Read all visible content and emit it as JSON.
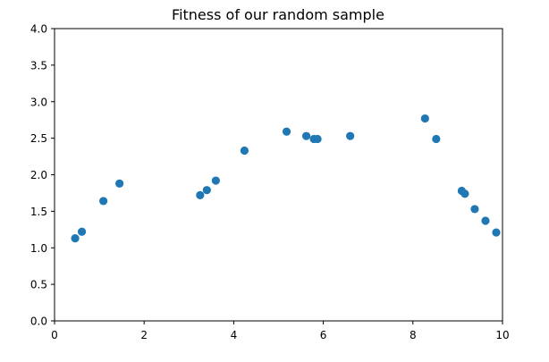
{
  "chart_data": {
    "type": "scatter",
    "title": "Fitness of our random sample",
    "xlabel": "",
    "ylabel": "",
    "xlim": [
      0,
      10
    ],
    "ylim": [
      0,
      4.0
    ],
    "x_ticks": [
      0,
      2,
      4,
      6,
      8,
      10
    ],
    "x_tick_labels": [
      "0",
      "2",
      "4",
      "6",
      "8",
      "10"
    ],
    "y_ticks": [
      0,
      0.5,
      1.0,
      1.5,
      2.0,
      2.5,
      3.0,
      3.5,
      4.0
    ],
    "y_tick_labels": [
      "0.0",
      "0.5",
      "1.0",
      "1.5",
      "2.0",
      "2.5",
      "3.0",
      "3.5",
      "4.0"
    ],
    "grid": false,
    "series": [
      {
        "color": "#1f77b4",
        "points": [
          {
            "x": 0.46,
            "y": 1.13
          },
          {
            "x": 0.61,
            "y": 1.22
          },
          {
            "x": 1.09,
            "y": 1.64
          },
          {
            "x": 1.45,
            "y": 1.88
          },
          {
            "x": 3.25,
            "y": 1.72
          },
          {
            "x": 3.4,
            "y": 1.79
          },
          {
            "x": 3.6,
            "y": 1.92
          },
          {
            "x": 4.24,
            "y": 2.33
          },
          {
            "x": 5.18,
            "y": 2.59
          },
          {
            "x": 5.62,
            "y": 2.53
          },
          {
            "x": 5.79,
            "y": 2.49
          },
          {
            "x": 5.87,
            "y": 2.49
          },
          {
            "x": 6.6,
            "y": 2.53
          },
          {
            "x": 8.27,
            "y": 2.77
          },
          {
            "x": 8.52,
            "y": 2.49
          },
          {
            "x": 9.09,
            "y": 1.78
          },
          {
            "x": 9.16,
            "y": 1.74
          },
          {
            "x": 9.38,
            "y": 1.53
          },
          {
            "x": 9.62,
            "y": 1.37
          },
          {
            "x": 9.86,
            "y": 1.21
          }
        ]
      }
    ]
  }
}
